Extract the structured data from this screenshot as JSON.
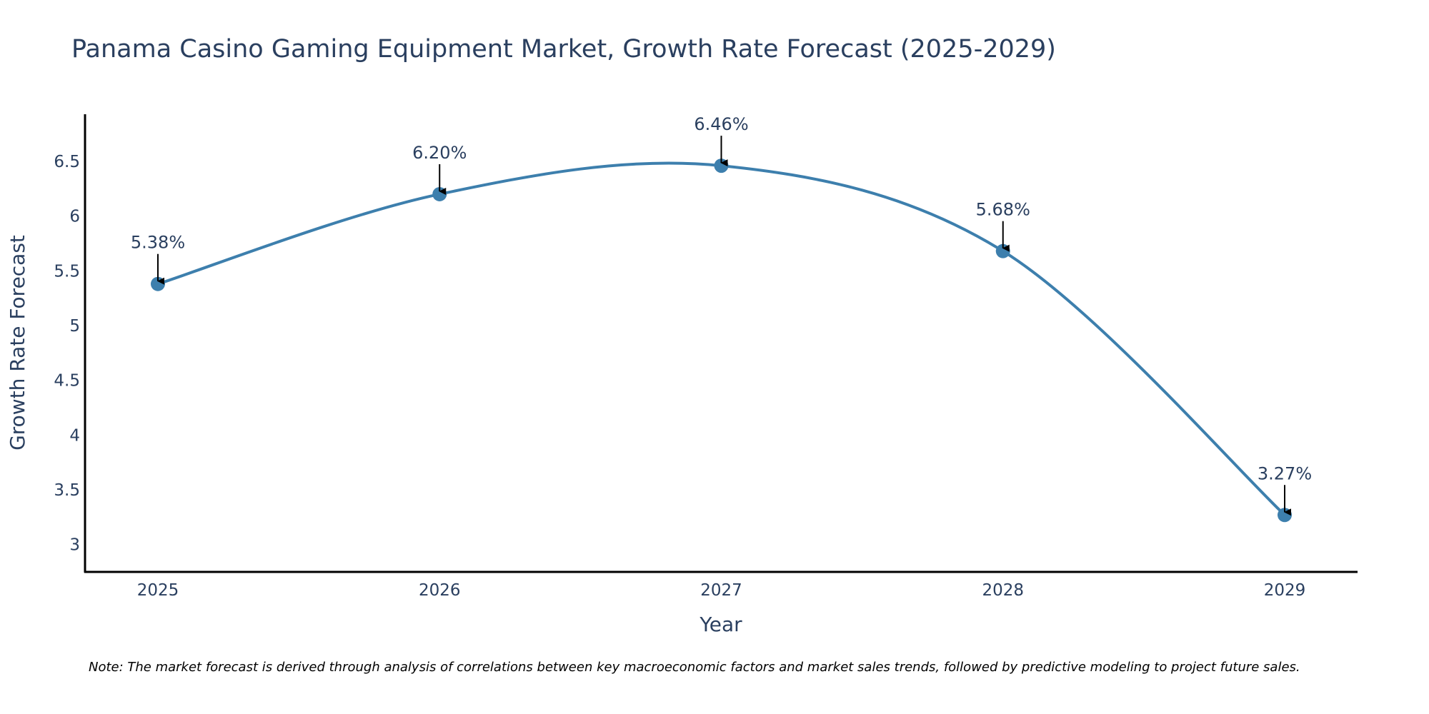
{
  "chart_data": {
    "type": "line",
    "title": "Panama Casino Gaming Equipment Market, Growth Rate Forecast (2025-2029)",
    "xlabel": "Year",
    "ylabel": "Growth Rate Forecast",
    "categories": [
      "2025",
      "2026",
      "2027",
      "2028",
      "2029"
    ],
    "values": [
      5.38,
      6.2,
      6.46,
      5.68,
      3.27
    ],
    "data_labels": [
      "5.38%",
      "6.20%",
      "6.46%",
      "5.68%",
      "3.27%"
    ],
    "y_ticks": [
      3,
      3.5,
      4,
      4.5,
      5,
      5.5,
      6,
      6.5
    ],
    "y_tick_labels": [
      "3",
      "3.5",
      "4",
      "4.5",
      "5",
      "5.5",
      "6",
      "6.5"
    ],
    "ylim": [
      2.75,
      6.93
    ],
    "line_shape": "spline",
    "grid": false,
    "line_color": "#3d7fad",
    "marker_color": "#3d7fad",
    "annotation_arrow_color": "#000000",
    "note": "Note: The market forecast is derived through analysis of correlations between key macroeconomic factors and market sales trends, followed by predictive modeling to project future sales."
  }
}
